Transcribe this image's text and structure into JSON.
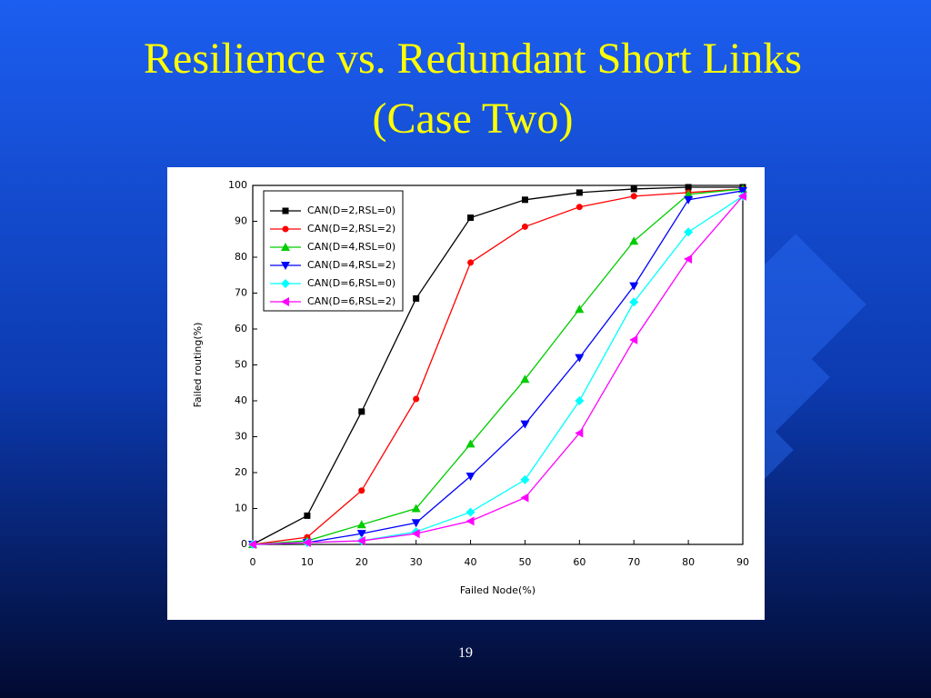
{
  "slide": {
    "title": [
      "Resilience vs. Redundant Short Links",
      "(Case Two)"
    ],
    "page_number": "19"
  },
  "chart_data": {
    "type": "line",
    "x_label": "Failed Node(%)",
    "y_label": "Failed routing(%)",
    "x": [
      0,
      10,
      20,
      30,
      40,
      50,
      60,
      70,
      80,
      90
    ],
    "xlim": [
      0,
      90
    ],
    "ylim": [
      0,
      100
    ],
    "xticks": [
      0,
      10,
      20,
      30,
      40,
      50,
      60,
      70,
      80,
      90
    ],
    "yticks": [
      0,
      10,
      20,
      30,
      40,
      50,
      60,
      70,
      80,
      90,
      100
    ],
    "series": [
      {
        "name": "CAN(D=2,RSL=0)",
        "color": "#000000",
        "marker": "square",
        "values": [
          0,
          8,
          37,
          68.5,
          91,
          96,
          98,
          99,
          99.5,
          99.5
        ]
      },
      {
        "name": "CAN(D=2,RSL=2)",
        "color": "#ff0000",
        "marker": "circle",
        "values": [
          0,
          2,
          15,
          40.5,
          78.5,
          88.5,
          94,
          97,
          98,
          99
        ]
      },
      {
        "name": "CAN(D=4,RSL=0)",
        "color": "#00cc00",
        "marker": "triangle-up",
        "values": [
          0,
          1,
          5.5,
          10,
          28,
          46,
          65.5,
          84.5,
          97.5,
          99
        ]
      },
      {
        "name": "CAN(D=4,RSL=2)",
        "color": "#0000ff",
        "marker": "triangle-down",
        "values": [
          0,
          0.5,
          3,
          6,
          19,
          33.5,
          52,
          72,
          96,
          98.5
        ]
      },
      {
        "name": "CAN(D=6,RSL=0)",
        "color": "#00ffff",
        "marker": "diamond",
        "values": [
          0,
          0.5,
          1,
          3.5,
          9,
          18,
          40,
          67.5,
          87,
          97
        ]
      },
      {
        "name": "CAN(D=6,RSL=2)",
        "color": "#ff00ff",
        "marker": "triangle-left",
        "values": [
          0,
          0.5,
          1,
          3,
          6.5,
          13,
          31,
          57,
          79.5,
          97
        ]
      }
    ]
  }
}
